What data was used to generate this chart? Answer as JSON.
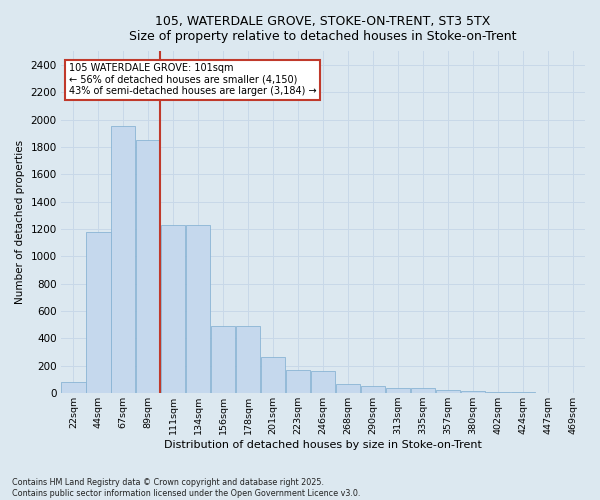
{
  "title_line1": "105, WATERDALE GROVE, STOKE-ON-TRENT, ST3 5TX",
  "title_line2": "Size of property relative to detached houses in Stoke-on-Trent",
  "xlabel": "Distribution of detached houses by size in Stoke-on-Trent",
  "ylabel": "Number of detached properties",
  "categories": [
    "22sqm",
    "44sqm",
    "67sqm",
    "89sqm",
    "111sqm",
    "134sqm",
    "156sqm",
    "178sqm",
    "201sqm",
    "223sqm",
    "246sqm",
    "268sqm",
    "290sqm",
    "313sqm",
    "335sqm",
    "357sqm",
    "380sqm",
    "402sqm",
    "424sqm",
    "447sqm",
    "469sqm"
  ],
  "values": [
    80,
    1175,
    1950,
    1850,
    1230,
    1230,
    490,
    490,
    265,
    170,
    165,
    70,
    55,
    35,
    35,
    20,
    15,
    10,
    5,
    3,
    2
  ],
  "bar_color": "#c5d8ed",
  "bar_edge_color": "#8ab4d4",
  "highlight_line_color": "#c0392b",
  "highlight_bar_index": 3,
  "annotation_text": "105 WATERDALE GROVE: 101sqm\n← 56% of detached houses are smaller (4,150)\n43% of semi-detached houses are larger (3,184) →",
  "annotation_box_color": "#c0392b",
  "ylim": [
    0,
    2500
  ],
  "yticks": [
    0,
    200,
    400,
    600,
    800,
    1000,
    1200,
    1400,
    1600,
    1800,
    2000,
    2200,
    2400
  ],
  "grid_color": "#c8d8e8",
  "background_color": "#dce8f0",
  "plot_bg_color": "#dce8f0",
  "footnote1": "Contains HM Land Registry data © Crown copyright and database right 2025.",
  "footnote2": "Contains public sector information licensed under the Open Government Licence v3.0."
}
